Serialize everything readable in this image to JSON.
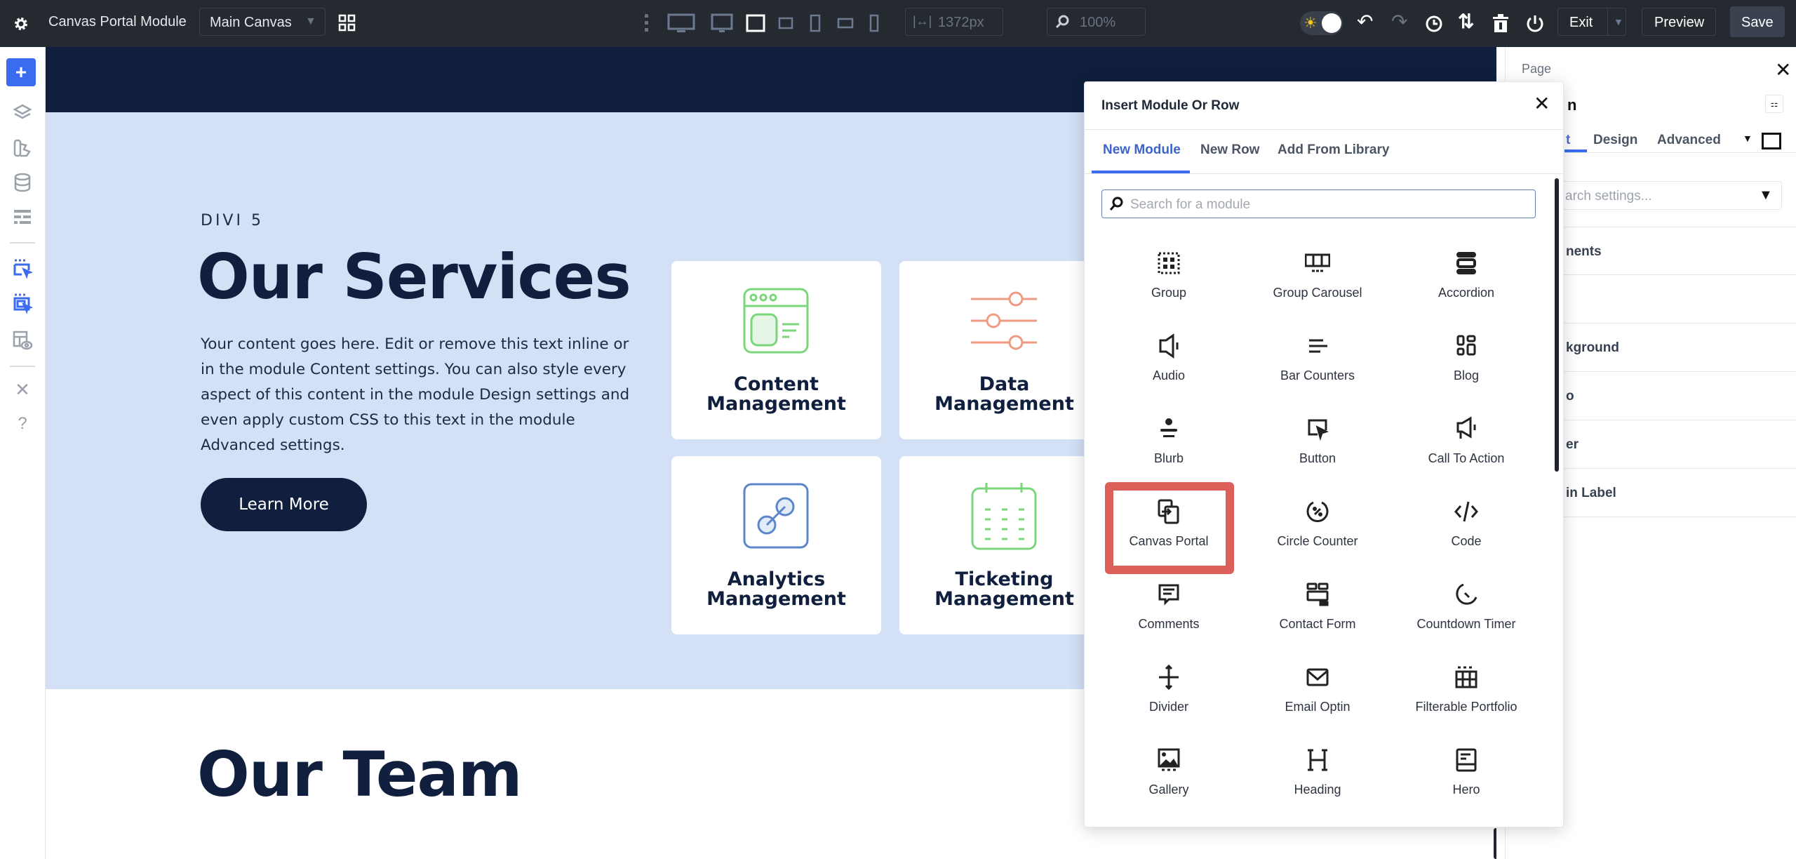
{
  "topbar": {
    "title": "Canvas Portal Module",
    "canvas_select": "Main Canvas",
    "width_value": "1372px",
    "zoom_value": "100%",
    "exit_label": "Exit",
    "preview_label": "Preview",
    "save_label": "Save",
    "active_device": "tablet-landscape"
  },
  "sidebar": {
    "items": [
      "add",
      "layers",
      "theme-builder",
      "database",
      "layout",
      "canvas-select",
      "canvas-portal",
      "page-preview",
      "tools",
      "help"
    ],
    "accent": "#3b6cf0"
  },
  "page": {
    "eyebrow": "DIVI 5",
    "heading": "Our Services",
    "body": "Your content goes here. Edit or remove this text inline or in the module Content settings. You can also style every aspect of this content in the module Design settings and even apply custom CSS to this text in the module Advanced settings.",
    "button": "Learn More",
    "cards": [
      {
        "line1": "Content",
        "line2": "Management",
        "icon": "browser-window-icon",
        "color": "#7bd67b"
      },
      {
        "line1": "Data",
        "line2": "Management",
        "icon": "sliders-icon",
        "color": "#ef9a82"
      },
      {
        "line1": "Analytics",
        "line2": "Management",
        "icon": "link-icon",
        "color": "#5b86c9"
      },
      {
        "line1": "Ticketing",
        "line2": "Management",
        "icon": "calendar-icon",
        "color": "#7bd67b"
      }
    ],
    "team_heading": "Our Team",
    "colors": {
      "navy": "#0f1f3d",
      "section_bg": "#d3e0f6"
    }
  },
  "panel": {
    "breadcrumb": "Page",
    "title_fragment": "n",
    "tabs": {
      "first_fragment": "t",
      "design": "Design",
      "advanced": "Advanced"
    },
    "search_placeholder_fragment": "arch settings...",
    "groups": [
      "nents",
      "",
      "kground",
      "o",
      "er",
      "in Label"
    ]
  },
  "modal": {
    "title": "Insert Module Or Row",
    "tabs": [
      "New Module",
      "New Row",
      "Add From Library"
    ],
    "active_tab": "New Module",
    "search_placeholder": "Search for a module",
    "highlight_color": "#dc5f5a",
    "highlighted": "Canvas Portal",
    "modules": [
      {
        "label": "Group",
        "icon": "group-icon"
      },
      {
        "label": "Group Carousel",
        "icon": "group-carousel-icon"
      },
      {
        "label": "Accordion",
        "icon": "accordion-icon"
      },
      {
        "label": "Audio",
        "icon": "audio-icon"
      },
      {
        "label": "Bar Counters",
        "icon": "bar-counters-icon"
      },
      {
        "label": "Blog",
        "icon": "blog-icon"
      },
      {
        "label": "Blurb",
        "icon": "blurb-icon"
      },
      {
        "label": "Button",
        "icon": "button-icon"
      },
      {
        "label": "Call To Action",
        "icon": "call-to-action-icon"
      },
      {
        "label": "Canvas Portal",
        "icon": "canvas-portal-icon"
      },
      {
        "label": "Circle Counter",
        "icon": "circle-counter-icon"
      },
      {
        "label": "Code",
        "icon": "code-icon"
      },
      {
        "label": "Comments",
        "icon": "comments-icon"
      },
      {
        "label": "Contact Form",
        "icon": "contact-form-icon"
      },
      {
        "label": "Countdown Timer",
        "icon": "countdown-timer-icon"
      },
      {
        "label": "Divider",
        "icon": "divider-icon"
      },
      {
        "label": "Email Optin",
        "icon": "email-optin-icon"
      },
      {
        "label": "Filterable Portfolio",
        "icon": "filterable-portfolio-icon"
      },
      {
        "label": "Gallery",
        "icon": "gallery-icon"
      },
      {
        "label": "Heading",
        "icon": "heading-icon"
      },
      {
        "label": "Hero",
        "icon": "hero-icon"
      }
    ]
  }
}
